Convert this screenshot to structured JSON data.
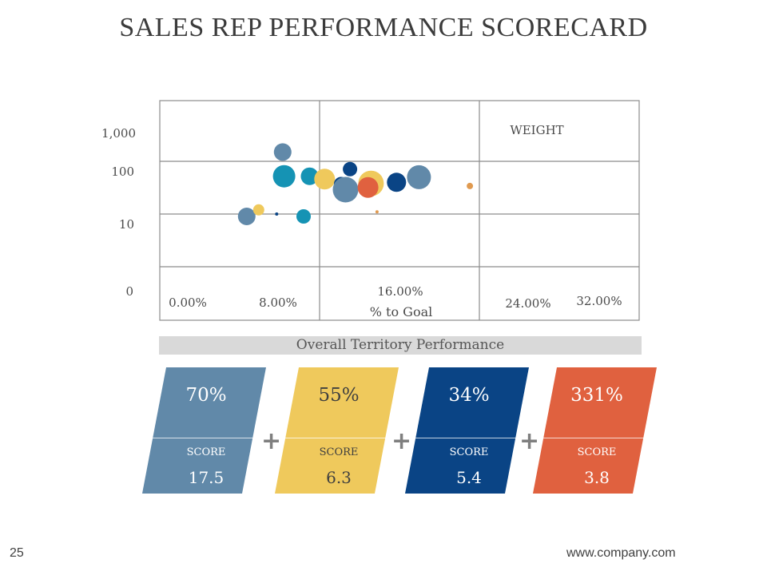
{
  "slide": {
    "title": "SALES REP PERFORMANCE SCORECARD",
    "page_number": "25",
    "website": "www.company.com"
  },
  "chart_data": {
    "type": "scatter",
    "title": "",
    "xlabel": "% to Goal",
    "ylabel": "",
    "annotation": "WEIGHT",
    "y_ticks": [
      "1,000",
      "100",
      "10",
      "0"
    ],
    "x_ticks": [
      "0.00%",
      "8.00%",
      "16.00%",
      "24.00%",
      "32.00%"
    ],
    "colors": {
      "slate": "#6189a9",
      "yellow": "#efc95c",
      "navy": "#0a4485",
      "teal": "#1593b4",
      "orange": "#e0613f",
      "tan": "#e09a50"
    },
    "points": [
      {
        "x": 8.2,
        "y": 150,
        "size": 11,
        "color": "slate"
      },
      {
        "x": 8.3,
        "y": 52,
        "size": 14,
        "color": "teal"
      },
      {
        "x": 10.0,
        "y": 52,
        "size": 11,
        "color": "teal"
      },
      {
        "x": 11.0,
        "y": 46,
        "size": 13,
        "color": "yellow"
      },
      {
        "x": 12.7,
        "y": 71,
        "size": 9,
        "color": "navy"
      },
      {
        "x": 12.1,
        "y": 37,
        "size": 9,
        "color": "navy"
      },
      {
        "x": 12.4,
        "y": 29,
        "size": 16,
        "color": "slate"
      },
      {
        "x": 14.1,
        "y": 38,
        "size": 16,
        "color": "yellow"
      },
      {
        "x": 13.9,
        "y": 32,
        "size": 13,
        "color": "orange"
      },
      {
        "x": 15.8,
        "y": 40,
        "size": 12,
        "color": "navy"
      },
      {
        "x": 17.3,
        "y": 50,
        "size": 15,
        "color": "slate"
      },
      {
        "x": 5.8,
        "y": 9,
        "size": 11,
        "color": "slate"
      },
      {
        "x": 6.6,
        "y": 12,
        "size": 7,
        "color": "yellow"
      },
      {
        "x": 7.8,
        "y": 10,
        "size": 2,
        "color": "navy"
      },
      {
        "x": 9.6,
        "y": 9,
        "size": 9,
        "color": "teal"
      },
      {
        "x": 14.5,
        "y": 11,
        "size": 2,
        "color": "tan"
      },
      {
        "x": 20.7,
        "y": 34,
        "size": 4,
        "color": "tan"
      }
    ]
  },
  "performance": {
    "banner": "Overall Territory Performance",
    "score_label": "SCORE",
    "cards": [
      {
        "percent": "70%",
        "score": "17.5",
        "color": "#6189a9"
      },
      {
        "percent": "55%",
        "score": "6.3",
        "color": "#efc95c"
      },
      {
        "percent": "34%",
        "score": "5.4",
        "color": "#0a4485"
      },
      {
        "percent": "331%",
        "score": "3.8",
        "color": "#e0613f"
      }
    ],
    "operator": "+"
  }
}
